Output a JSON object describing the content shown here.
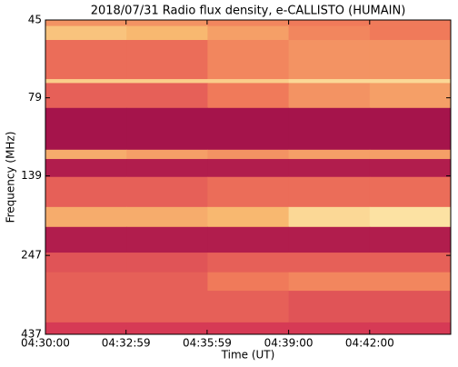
{
  "chart_data": {
    "type": "heatmap",
    "title": "2018/07/31  Radio flux density, e-CALLISTO (HUMAIN)",
    "x_label": "Time (UT)",
    "y_label": "Frequency (MHz)",
    "x_edges": [
      "04:30:00",
      "04:33:00",
      "04:36:00",
      "04:39:00",
      "04:42:00",
      "04:45:00"
    ],
    "y_edges": [
      45,
      47,
      52,
      69,
      71,
      85,
      115,
      123,
      140,
      174,
      201,
      242,
      279,
      319,
      401,
      437
    ],
    "z": [
      [
        0.6,
        0.6,
        0.55,
        0.5,
        0.5
      ],
      [
        0.8,
        0.75,
        0.65,
        0.55,
        0.5
      ],
      [
        0.45,
        0.45,
        0.55,
        0.6,
        0.6
      ],
      [
        0.85,
        0.85,
        0.85,
        0.9,
        0.9
      ],
      [
        0.4,
        0.4,
        0.5,
        0.6,
        0.65
      ],
      [
        0.05,
        0.05,
        0.05,
        0.05,
        0.05
      ],
      [
        0.7,
        0.65,
        0.6,
        0.65,
        0.65
      ],
      [
        0.1,
        0.1,
        0.1,
        0.1,
        0.1
      ],
      [
        0.4,
        0.4,
        0.45,
        0.45,
        0.45
      ],
      [
        0.7,
        0.7,
        0.75,
        0.9,
        0.95
      ],
      [
        0.1,
        0.1,
        0.1,
        0.1,
        0.1
      ],
      [
        0.35,
        0.35,
        0.4,
        0.4,
        0.4
      ],
      [
        0.4,
        0.4,
        0.5,
        0.55,
        0.55
      ],
      [
        0.4,
        0.4,
        0.4,
        0.35,
        0.35
      ],
      [
        0.25,
        0.25,
        0.25,
        0.25,
        0.25
      ]
    ],
    "colormap": [
      "#990a48",
      "#d63a55",
      "#f07a5a",
      "#f8b870",
      "#fdedb0"
    ],
    "xlim": [
      "04:30:00",
      "04:45:00"
    ],
    "xticks": [
      "04:30:00",
      "04:32:59",
      "04:35:59",
      "04:39:00",
      "04:42:00"
    ],
    "ylim": [
      45,
      437
    ],
    "yticks": [
      45,
      79,
      139,
      247,
      437
    ],
    "y_log": true,
    "y_inverted": true
  }
}
